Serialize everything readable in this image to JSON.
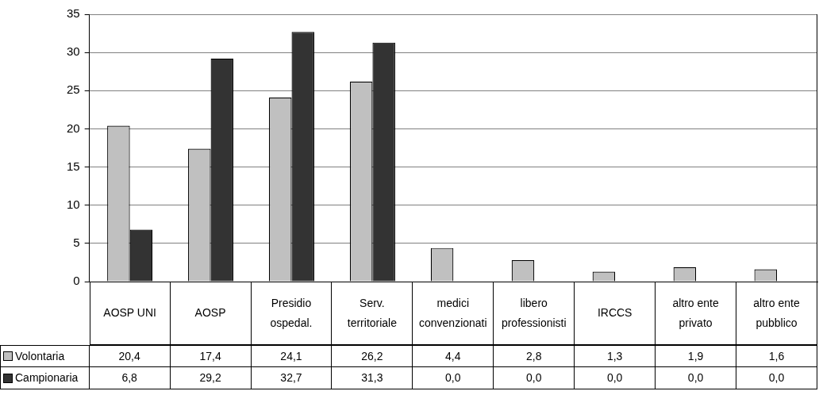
{
  "chart_data": {
    "type": "bar",
    "categories": [
      "AOSP UNI",
      "AOSP",
      "Presidio ospedal.",
      "Serv. territoriale",
      "medici convenzionati",
      "libero professionisti",
      "IRCCS",
      "altro ente privato",
      "altro ente pubblico"
    ],
    "series": [
      {
        "name": "Volontaria",
        "color": "#c0c0c0",
        "values": [
          20.4,
          17.4,
          24.1,
          26.2,
          4.4,
          2.8,
          1.3,
          1.9,
          1.6
        ],
        "value_labels": [
          "20,4",
          "17,4",
          "24,1",
          "26,2",
          "4,4",
          "2,8",
          "1,3",
          "1,9",
          "1,6"
        ]
      },
      {
        "name": "Campionaria",
        "color": "#333333",
        "values": [
          6.8,
          29.2,
          32.7,
          31.3,
          0.0,
          0.0,
          0.0,
          0.0,
          0.0
        ],
        "value_labels": [
          "6,8",
          "29,2",
          "32,7",
          "31,3",
          "0,0",
          "0,0",
          "0,0",
          "0,0",
          "0,0"
        ]
      }
    ],
    "ylim": [
      0,
      35
    ],
    "yticks": [
      0,
      5,
      10,
      15,
      20,
      25,
      30,
      35
    ],
    "grid": "y",
    "legend": "bottom"
  }
}
